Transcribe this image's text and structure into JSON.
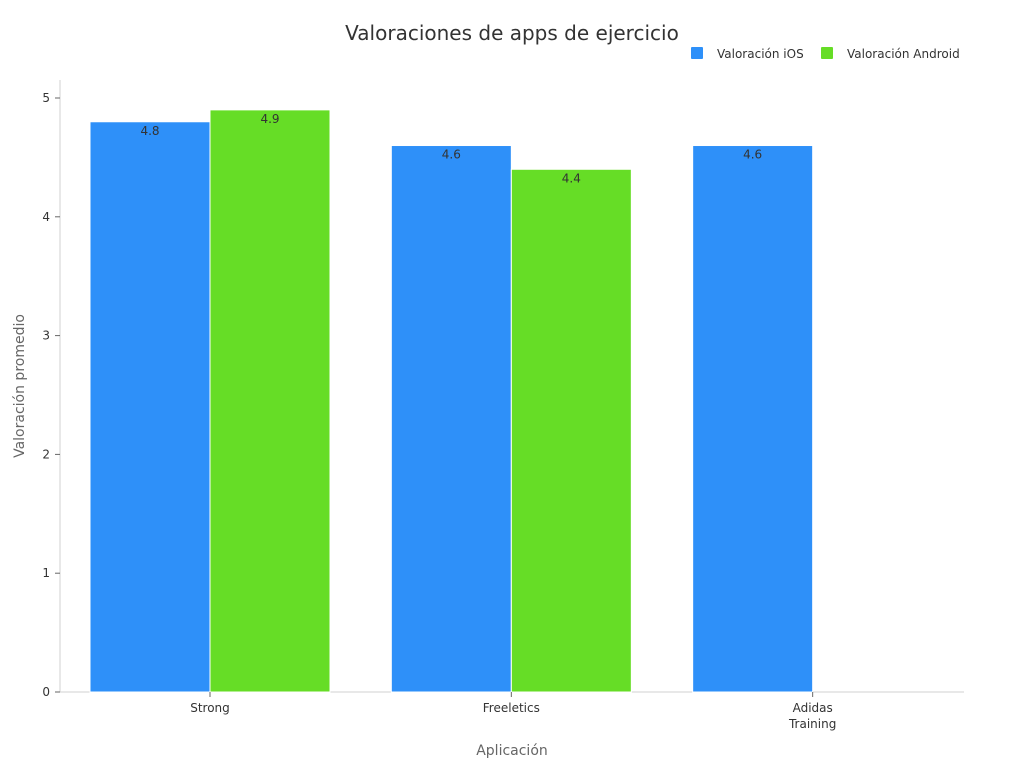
{
  "chart_data": {
    "type": "bar",
    "title": "Valoraciones de apps de ejercicio",
    "xlabel": "Aplicación",
    "ylabel": "Valoración promedio",
    "categories": [
      [
        "Strong"
      ],
      [
        "Freeletics"
      ],
      [
        "Adidas",
        "Training"
      ]
    ],
    "series": [
      {
        "name": "Valoración iOS",
        "color": "#2e90f9",
        "values": [
          4.8,
          4.6,
          4.6
        ]
      },
      {
        "name": "Valoración Android",
        "color": "#66dd26",
        "values": [
          4.9,
          4.4,
          null
        ]
      }
    ],
    "ylim": [
      0,
      5.15
    ],
    "yticks": [
      0,
      1,
      2,
      3,
      4,
      5
    ],
    "grid": false,
    "legend_position": "top-right",
    "data_labels": true
  }
}
